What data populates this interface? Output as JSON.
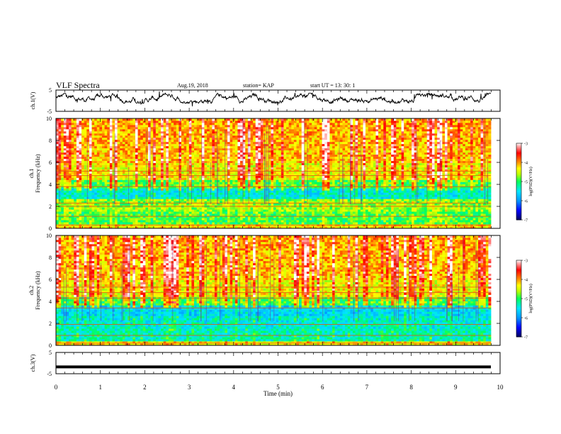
{
  "header": {
    "title": "VLF Spectra",
    "date": "Aug.19, 2018",
    "station": "station= KAP",
    "start": "start  UT =   13: 30: 1"
  },
  "chart_data": [
    {
      "type": "line",
      "panel": "ch1-waveform",
      "ylabel": "ch.1(V)",
      "ylim": [
        -5,
        5
      ],
      "yticks": [
        5,
        -5
      ],
      "xlim": [
        0,
        10
      ],
      "note": "noisy waveform, approx. 0 to 3 V amplitude",
      "series": [
        {
          "values": []
        }
      ]
    },
    {
      "type": "heatmap",
      "panel": "ch1-spectrogram",
      "ylabel_line1": "ch.1",
      "ylabel_line2": "Frequency (kHz)",
      "ylim": [
        0,
        10
      ],
      "yticks": [
        "0",
        "2",
        "4",
        "6",
        "8",
        "10"
      ],
      "xlim": [
        0,
        10
      ],
      "colorbar": {
        "label": "log(PSD)(V²/Hz)",
        "ticks": [
          "-3",
          "-4",
          "-5",
          "-6",
          "-7"
        ],
        "range": [
          -7,
          -3
        ]
      },
      "colors": [
        "#00005a",
        "#0000ff",
        "#00d0ff",
        "#00ff60",
        "#ffff00",
        "#ff8800",
        "#ff0000",
        "#ffffff"
      ]
    },
    {
      "type": "heatmap",
      "panel": "ch2-spectrogram",
      "ylabel_line1": "ch.2",
      "ylabel_line2": "Frequency (kHz)",
      "ylim": [
        0,
        10
      ],
      "yticks": [
        "0",
        "2",
        "4",
        "6",
        "8",
        "10"
      ],
      "xlim": [
        0,
        10
      ],
      "colorbar": {
        "label": "log(PSD)(V²/Hz)",
        "ticks": [
          "-3",
          "-4",
          "-5",
          "-6",
          "-7"
        ],
        "range": [
          -7,
          -3
        ]
      }
    },
    {
      "type": "line",
      "panel": "ch3-waveform",
      "ylabel": "ch.3(V)",
      "ylim": [
        -5,
        5
      ],
      "yticks": [
        "5",
        "-5"
      ],
      "xlim": [
        0,
        10
      ],
      "xlabel": "Time (min)",
      "xticks": [
        "0",
        "1",
        "2",
        "3",
        "4",
        "5",
        "6",
        "7",
        "8",
        "9",
        "10"
      ],
      "series": [
        {
          "values": [
            -1.8,
            -1.8
          ]
        }
      ]
    }
  ]
}
